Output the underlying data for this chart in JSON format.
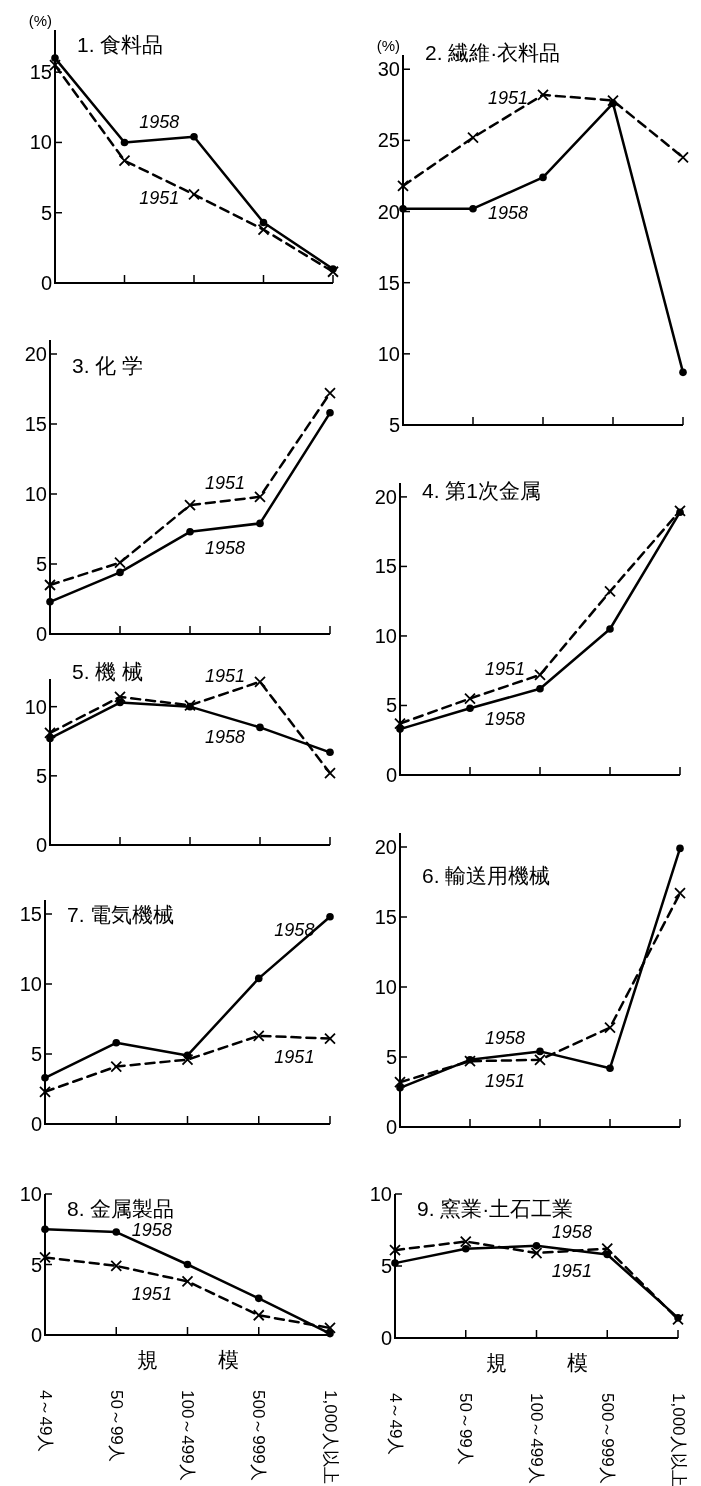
{
  "chart_data": [
    {
      "type": "line",
      "title": "1. 食料品",
      "ylabel": "(%)",
      "categories": [
        null,
        null,
        null,
        null,
        null
      ],
      "ylim": [
        0,
        18
      ],
      "yticks": [
        0,
        5,
        10,
        15
      ],
      "tick_labels": "y",
      "series": [
        {
          "name": "1958",
          "color": "#000000",
          "marker": "circle",
          "line_style": "solid",
          "values": [
            16.0,
            10.0,
            10.4,
            4.3,
            1.0
          ]
        },
        {
          "name": "1951",
          "color": "#000000",
          "marker": "cross",
          "line_style": "dashed",
          "values": [
            15.5,
            8.7,
            6.3,
            3.8,
            0.8
          ]
        }
      ]
    },
    {
      "type": "line",
      "title": "2. 繊維·衣料品",
      "ylabel": "(%)",
      "categories": [
        null,
        null,
        null,
        null,
        null
      ],
      "ylim": [
        5,
        31
      ],
      "yticks": [
        5,
        10,
        15,
        20,
        25,
        30
      ],
      "tick_labels": "y",
      "series": [
        {
          "name": "1958",
          "color": "#000000",
          "marker": "circle",
          "line_style": "solid",
          "values": [
            20.2,
            20.2,
            22.4,
            27.6,
            8.7
          ]
        },
        {
          "name": "1951",
          "color": "#000000",
          "marker": "cross",
          "line_style": "dashed",
          "values": [
            21.8,
            25.2,
            28.2,
            27.8,
            23.8
          ]
        }
      ]
    },
    {
      "type": "line",
      "title": "3. 化 学",
      "categories": [
        null,
        null,
        null,
        null,
        null
      ],
      "ylim": [
        0,
        21
      ],
      "yticks": [
        0,
        5,
        10,
        15,
        20
      ],
      "tick_labels": "y",
      "series": [
        {
          "name": "1958",
          "color": "#000000",
          "marker": "circle",
          "line_style": "solid",
          "values": [
            2.3,
            4.4,
            7.3,
            7.9,
            15.8
          ]
        },
        {
          "name": "1951",
          "color": "#000000",
          "marker": "cross",
          "line_style": "dashed",
          "values": [
            3.5,
            5.1,
            9.2,
            9.8,
            17.2
          ]
        }
      ]
    },
    {
      "type": "line",
      "title": "4. 第1次金属",
      "categories": [
        null,
        null,
        null,
        null,
        null
      ],
      "ylim": [
        0,
        21
      ],
      "yticks": [
        0,
        5,
        10,
        15,
        20
      ],
      "tick_labels": "y",
      "series": [
        {
          "name": "1958",
          "color": "#000000",
          "marker": "circle",
          "line_style": "solid",
          "values": [
            3.3,
            4.8,
            6.2,
            10.5,
            18.9
          ]
        },
        {
          "name": "1951",
          "color": "#000000",
          "marker": "cross",
          "line_style": "dashed",
          "values": [
            3.7,
            5.5,
            7.2,
            13.2,
            19.0
          ]
        }
      ]
    },
    {
      "type": "line",
      "title": "5. 機 械",
      "categories": [
        null,
        null,
        null,
        null,
        null
      ],
      "ylim": [
        0,
        12
      ],
      "yticks": [
        0,
        5,
        10
      ],
      "tick_labels": "y",
      "series": [
        {
          "name": "1958",
          "color": "#000000",
          "marker": "circle",
          "line_style": "solid",
          "values": [
            7.7,
            10.3,
            10.0,
            8.5,
            6.7
          ]
        },
        {
          "name": "1951",
          "color": "#000000",
          "marker": "cross",
          "line_style": "dashed",
          "values": [
            8.1,
            10.7,
            10.1,
            11.8,
            5.2
          ]
        }
      ]
    },
    {
      "type": "line",
      "title": "6. 輸送用機械",
      "categories": [
        null,
        null,
        null,
        null,
        null
      ],
      "ylim": [
        0,
        21
      ],
      "yticks": [
        0,
        5,
        10,
        15,
        20
      ],
      "tick_labels": "y",
      "series": [
        {
          "name": "1958",
          "color": "#000000",
          "marker": "circle",
          "line_style": "solid",
          "values": [
            2.8,
            4.8,
            5.4,
            4.2,
            19.9
          ]
        },
        {
          "name": "1951",
          "color": "#000000",
          "marker": "cross",
          "line_style": "dashed",
          "values": [
            3.2,
            4.7,
            4.8,
            7.1,
            16.7
          ]
        }
      ]
    },
    {
      "type": "line",
      "title": "7. 電気機械",
      "categories": [
        null,
        null,
        null,
        null,
        null
      ],
      "ylim": [
        0,
        16
      ],
      "yticks": [
        0,
        5,
        10,
        15
      ],
      "tick_labels": "y",
      "series": [
        {
          "name": "1958",
          "color": "#000000",
          "marker": "circle",
          "line_style": "solid",
          "values": [
            3.3,
            5.8,
            4.9,
            10.4,
            14.8
          ]
        },
        {
          "name": "1951",
          "color": "#000000",
          "marker": "cross",
          "line_style": "dashed",
          "values": [
            2.3,
            4.1,
            4.6,
            6.3,
            6.1
          ]
        }
      ]
    },
    {
      "type": "line",
      "title": "8. 金属製品",
      "xlabel": "規模",
      "categories": [
        "4～49人",
        "50～99人",
        "100～499人",
        "500～999人",
        "1,000人以上"
      ],
      "ylim": [
        0,
        10
      ],
      "yticks": [
        0,
        5,
        10
      ],
      "series": [
        {
          "name": "1958",
          "color": "#000000",
          "marker": "circle",
          "line_style": "solid",
          "values": [
            7.5,
            7.3,
            5.0,
            2.6,
            0.1
          ]
        },
        {
          "name": "1951",
          "color": "#000000",
          "marker": "cross",
          "line_style": "dashed",
          "values": [
            5.5,
            4.9,
            3.8,
            1.4,
            0.5
          ]
        }
      ]
    },
    {
      "type": "line",
      "title": "9. 窯業·土石工業",
      "xlabel": "規模",
      "categories": [
        "4～49人",
        "50～99人",
        "100～499人",
        "500～999人",
        "1,000人以上"
      ],
      "ylim": [
        0,
        10
      ],
      "yticks": [
        0,
        5,
        10
      ],
      "series": [
        {
          "name": "1958",
          "color": "#000000",
          "marker": "circle",
          "line_style": "solid",
          "values": [
            5.2,
            6.2,
            6.4,
            5.8,
            1.4
          ]
        },
        {
          "name": "1951",
          "color": "#000000",
          "marker": "cross",
          "line_style": "dashed",
          "values": [
            6.1,
            6.7,
            5.9,
            6.2,
            1.3
          ]
        }
      ]
    }
  ]
}
